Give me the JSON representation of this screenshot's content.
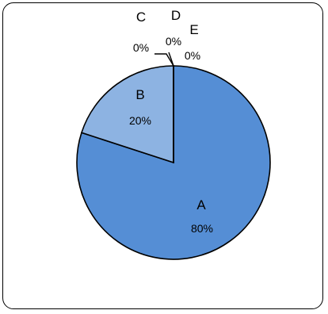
{
  "chart_data": {
    "type": "pie",
    "categories": [
      "A",
      "B",
      "C",
      "D",
      "E"
    ],
    "values": [
      80,
      20,
      0,
      0,
      0
    ],
    "data_labels": [
      "80%",
      "20%",
      "0%",
      "0%",
      "0%"
    ],
    "colors": {
      "slice_a": "#558ed5",
      "slice_b": "#8db3e2",
      "slice_other": "#c6d9f1",
      "border": "#000000"
    },
    "legend": "none"
  }
}
